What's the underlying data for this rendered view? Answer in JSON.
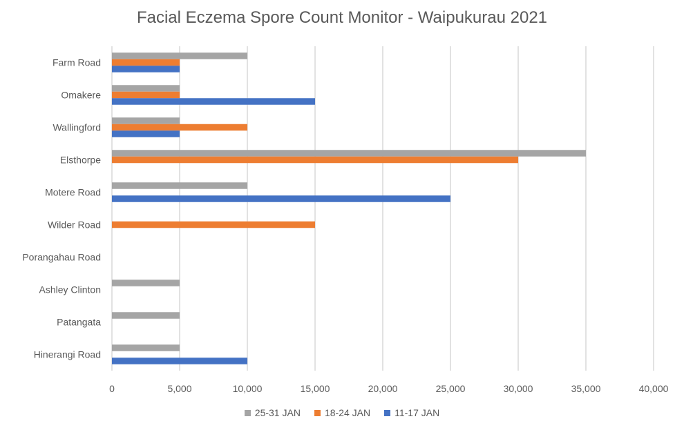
{
  "chart_data": {
    "type": "bar",
    "orientation": "horizontal",
    "title": "Facial Eczema Spore Count Monitor - Waipukurau 2021",
    "categories": [
      "Farm Road",
      "Omakere",
      "Wallingford",
      "Elsthorpe",
      "Motere Road",
      "Wilder Road",
      "Porangahau Road",
      "Ashley Clinton",
      "Patangata",
      "Hinerangi Road"
    ],
    "series": [
      {
        "name": "25-31 JAN",
        "color": "#A5A5A5",
        "values": [
          10000,
          5000,
          5000,
          35000,
          10000,
          0,
          0,
          5000,
          5000,
          5000
        ]
      },
      {
        "name": "18-24 JAN",
        "color": "#ED7D31",
        "values": [
          5000,
          5000,
          10000,
          30000,
          0,
          15000,
          0,
          0,
          0,
          0
        ]
      },
      {
        "name": "11-17 JAN",
        "color": "#4472C4",
        "values": [
          5000,
          15000,
          5000,
          0,
          25000,
          0,
          0,
          0,
          0,
          10000
        ]
      }
    ],
    "xlim": [
      0,
      40000
    ],
    "xticks": [
      0,
      5000,
      10000,
      15000,
      20000,
      25000,
      30000,
      35000,
      40000
    ],
    "xtick_labels": [
      "0",
      "5,000",
      "10,000",
      "15,000",
      "20,000",
      "25,000",
      "30,000",
      "35,000",
      "40,000"
    ],
    "grid": "vertical",
    "legend_position": "bottom"
  }
}
